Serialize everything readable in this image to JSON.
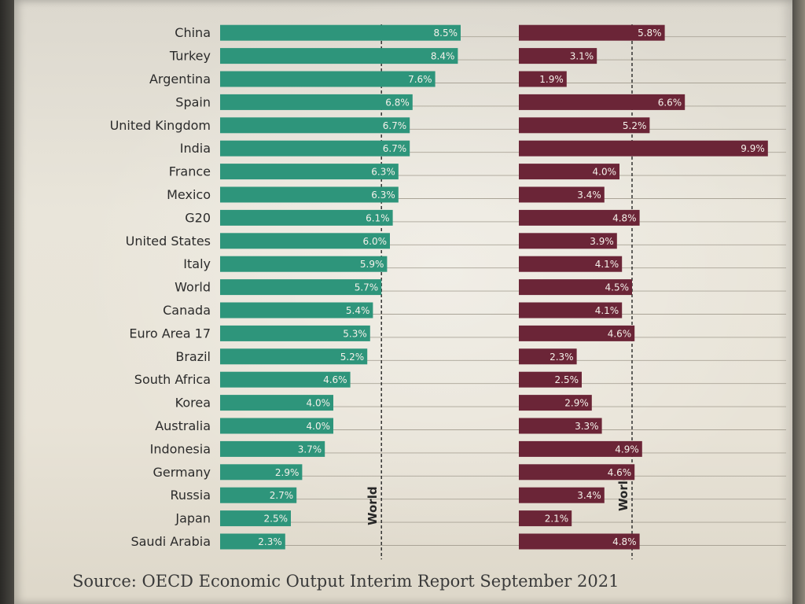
{
  "chart_data": {
    "type": "bar",
    "orientation": "horizontal",
    "categories": [
      "China",
      "Turkey",
      "Argentina",
      "Spain",
      "United Kingdom",
      "India",
      "France",
      "Mexico",
      "G20",
      "United States",
      "Italy",
      "World",
      "Canada",
      "Euro Area 17",
      "Brazil",
      "South Africa",
      "Korea",
      "Australia",
      "Indonesia",
      "Germany",
      "Russia",
      "Japan",
      "Saudi Arabia"
    ],
    "series": [
      {
        "color": "#2e957b",
        "values": [
          8.5,
          8.4,
          7.6,
          6.8,
          6.7,
          6.7,
          6.3,
          6.3,
          6.1,
          6.0,
          5.9,
          5.7,
          5.4,
          5.3,
          5.2,
          4.6,
          4.0,
          4.0,
          3.7,
          2.9,
          2.7,
          2.5,
          2.3
        ],
        "labels": [
          "8.5%",
          "8.4%",
          "7.6%",
          "6.8%",
          "6.7%",
          "6.7%",
          "6.3%",
          "6.3%",
          "6.1%",
          "6.0%",
          "5.9%",
          "5.7%",
          "5.4%",
          "5.3%",
          "5.2%",
          "4.6%",
          "4.0%",
          "4.0%",
          "3.7%",
          "2.9%",
          "2.7%",
          "2.5%",
          "2.3%"
        ]
      },
      {
        "color": "#6b2537",
        "values": [
          5.8,
          3.1,
          1.9,
          6.6,
          5.2,
          9.9,
          4.0,
          3.4,
          4.8,
          3.9,
          4.1,
          4.5,
          4.1,
          4.6,
          2.3,
          2.5,
          2.9,
          3.3,
          4.9,
          4.6,
          3.4,
          2.1,
          4.8
        ],
        "labels": [
          "5.8%",
          "3.1%",
          "1.9%",
          "6.6%",
          "5.2%",
          "9.9%",
          "4.0%",
          "3.4%",
          "4.8%",
          "3.9%",
          "4.1%",
          "4.5%",
          "4.1%",
          "4.6%",
          "2.3%",
          "2.5%",
          "2.9%",
          "3.3%",
          "4.9%",
          "4.6%",
          "3.4%",
          "2.1%",
          "4.8%"
        ]
      }
    ],
    "reference_lines": [
      {
        "label": "World",
        "series": 0,
        "value": 5.7,
        "style": "dashed"
      },
      {
        "label": "World",
        "series": 1,
        "value": 4.5,
        "style": "dashed"
      }
    ],
    "grid": true
  },
  "source": "Source: OECD Economic Output Interim Report September 2021",
  "colors": {
    "paper": "#e9e5da",
    "text": "#2b2b2b",
    "reference_line": "#262626"
  }
}
